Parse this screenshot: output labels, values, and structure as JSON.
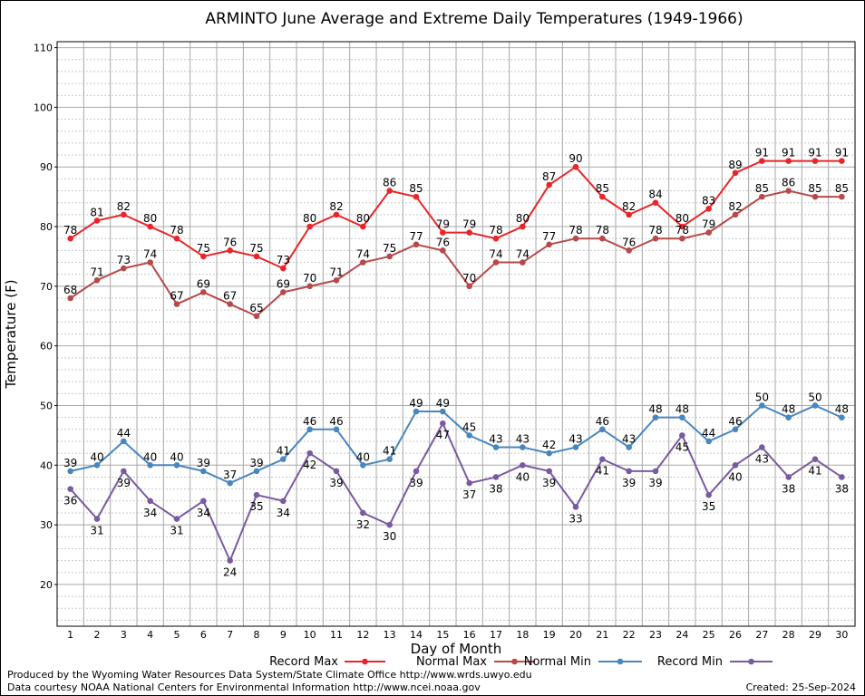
{
  "chart_data": {
    "type": "line",
    "title": "ARMINTO June Average and Extreme Daily Temperatures (1949-1966)",
    "xlabel": "Day of Month",
    "ylabel": "Temperature (F)",
    "ylim": [
      13,
      111
    ],
    "xlim": [
      0.5,
      30.5
    ],
    "grid": true,
    "legend_position": "bottom",
    "x": [
      1,
      2,
      3,
      4,
      5,
      6,
      7,
      8,
      9,
      10,
      11,
      12,
      13,
      14,
      15,
      16,
      17,
      18,
      19,
      20,
      21,
      22,
      23,
      24,
      25,
      26,
      27,
      28,
      29,
      30
    ],
    "x_tick_labels": [
      "1",
      "2",
      "3",
      "4",
      "5",
      "6",
      "7",
      "8",
      "9",
      "10",
      "11",
      "12",
      "13",
      "14",
      "15",
      "16",
      "17",
      "18",
      "19",
      "20",
      "21",
      "22",
      "23",
      "24",
      "25",
      "26",
      "27",
      "28",
      "29",
      "30"
    ],
    "y_tick_labels": [
      "20",
      "30",
      "40",
      "50",
      "60",
      "70",
      "80",
      "90",
      "100",
      "110"
    ],
    "series": [
      {
        "name": "Record Max",
        "color": "#e8262a",
        "label_position": "above",
        "values": [
          78,
          81,
          82,
          80,
          78,
          75,
          76,
          75,
          73,
          80,
          82,
          80,
          86,
          85,
          79,
          79,
          78,
          80,
          87,
          90,
          85,
          82,
          84,
          80,
          83,
          89,
          91,
          91,
          91,
          91
        ]
      },
      {
        "name": "Normal Max",
        "color": "#b64a4a",
        "label_position": "above",
        "values": [
          68,
          71,
          73,
          74,
          67,
          69,
          67,
          65,
          69,
          70,
          71,
          74,
          75,
          77,
          76,
          70,
          74,
          74,
          77,
          78,
          78,
          76,
          78,
          78,
          79,
          82,
          85,
          86,
          85,
          85
        ]
      },
      {
        "name": "Normal Min",
        "color": "#4a86be",
        "label_position": "above",
        "values": [
          39,
          40,
          44,
          40,
          40,
          39,
          37,
          39,
          41,
          46,
          46,
          40,
          41,
          49,
          49,
          45,
          43,
          43,
          42,
          43,
          46,
          43,
          48,
          48,
          44,
          46,
          50,
          48,
          50,
          48
        ]
      },
      {
        "name": "Record Min",
        "color": "#7a5aa0",
        "label_position": "below",
        "values": [
          36,
          31,
          39,
          34,
          31,
          34,
          24,
          35,
          34,
          42,
          39,
          32,
          30,
          39,
          47,
          37,
          38,
          40,
          39,
          33,
          41,
          39,
          39,
          45,
          35,
          40,
          43,
          38,
          41,
          38
        ]
      }
    ]
  },
  "footer": {
    "credit_line1": "Produced by the Wyoming Water Resources Data System/State Climate Office http://www.wrds.uwyo.edu",
    "credit_line2": "Data courtesy NOAA National Centers for Environmental Information http://www.ncei.noaa.gov",
    "created": "Created:  25-Sep-2024"
  }
}
